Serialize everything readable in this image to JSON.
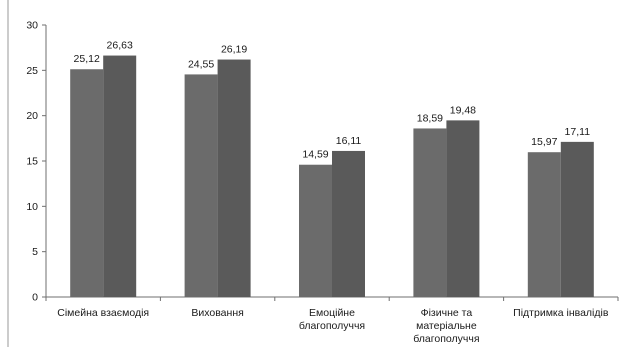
{
  "chart_data": {
    "type": "bar",
    "title": "",
    "xlabel": "",
    "ylabel": "",
    "ylim": [
      0,
      30
    ],
    "yticks": [
      0,
      5,
      10,
      15,
      20,
      25,
      30
    ],
    "grid": false,
    "legend": "none",
    "categories": [
      [
        "Сімейна взаємодія"
      ],
      [
        "Виховання"
      ],
      [
        "Емоційне",
        "благополуччя"
      ],
      [
        "Фізичне та",
        "матеріальне",
        "благополуччя"
      ],
      [
        "Підтримка інвалідів"
      ]
    ],
    "series": [
      {
        "values": [
          25.12,
          24.55,
          14.59,
          18.59,
          15.97
        ],
        "labels": [
          "25,12",
          "24,55",
          "14,59",
          "18,59",
          "15,97"
        ],
        "color": "#6b6b6b"
      },
      {
        "values": [
          26.63,
          26.19,
          16.11,
          19.48,
          17.11
        ],
        "labels": [
          "26,63",
          "26,19",
          "16,11",
          "19,48",
          "17,11"
        ],
        "color": "#5a5a5a"
      }
    ]
  }
}
